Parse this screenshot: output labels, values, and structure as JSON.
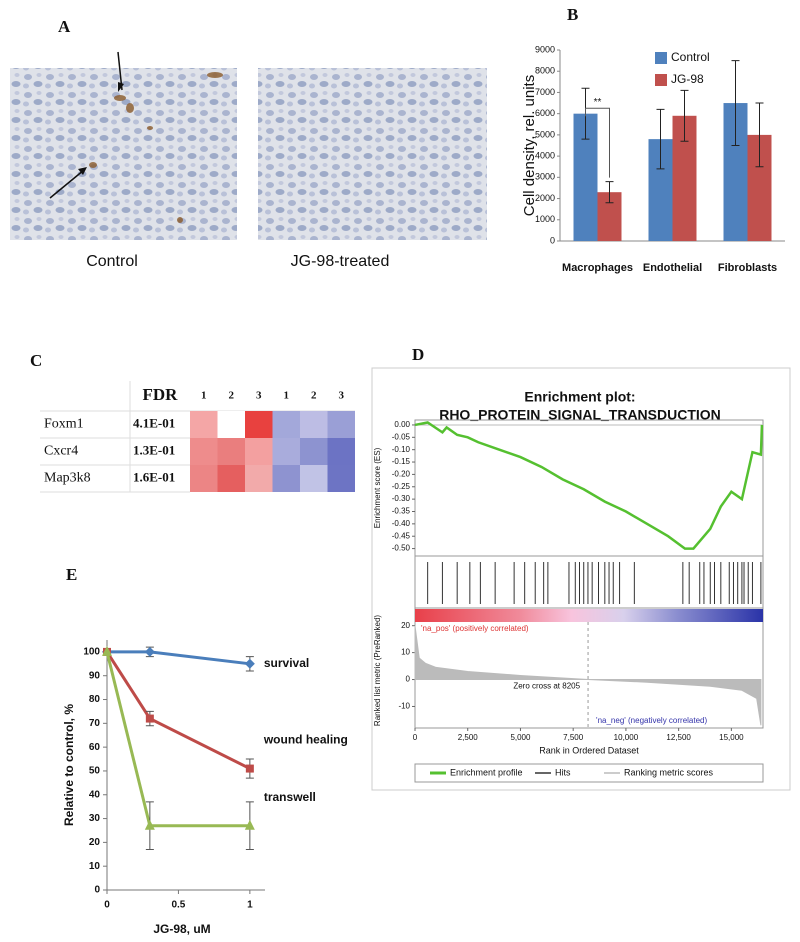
{
  "panel_labels": [
    "A",
    "B",
    "C",
    "D",
    "E"
  ],
  "images": {
    "labels": [
      "Control",
      "JG-98-treated"
    ]
  },
  "heatmap": {
    "header": [
      "FDR",
      "1",
      "2",
      "3",
      "1",
      "2",
      "3"
    ],
    "rows": [
      {
        "gene": "Foxm1",
        "fdr": "4.1E-01",
        "colors": [
          "#f4a6a6",
          "#ffffff",
          "#e8413f",
          "#a3a8da",
          "#bdbde4",
          "#9a9fd6"
        ]
      },
      {
        "gene": "Cxcr4",
        "fdr": "1.3E-01",
        "colors": [
          "#ee8c8c",
          "#ea7e7e",
          "#f3a0a0",
          "#a9acdc",
          "#8d93d0",
          "#6c73c4"
        ]
      },
      {
        "gene": "Map3k8",
        "fdr": "1.6E-01",
        "colors": [
          "#ec8585",
          "#e55f5f",
          "#f2aaaa",
          "#8e93d0",
          "#c1c3e6",
          "#6d74c4"
        ]
      }
    ]
  },
  "chart_data": [
    {
      "type": "bar",
      "ylabel": "Cell density, rel. units",
      "categories": [
        "Macrophages",
        "Endothelial",
        "Fibroblasts"
      ],
      "series": [
        {
          "name": "Control",
          "color": "#4f81bd",
          "values": [
            6000,
            4800,
            6500
          ],
          "errors": [
            1200,
            1400,
            2000
          ]
        },
        {
          "name": "JG-98",
          "color": "#c0504d",
          "values": [
            2300,
            5900,
            5000
          ],
          "errors": [
            500,
            1200,
            1500
          ]
        }
      ],
      "ylim": [
        0,
        9000
      ],
      "yticks": [
        0,
        1000,
        2000,
        3000,
        4000,
        5000,
        6000,
        7000,
        8000,
        9000
      ],
      "legend": "upper right",
      "annotation": "**"
    },
    {
      "type": "gsea",
      "title": [
        "Enrichment plot:",
        "RHO_PROTEIN_SIGNAL_TRANSDUCTION"
      ],
      "xlabel": "Rank in Ordered Dataset",
      "xlim": [
        0,
        16500
      ],
      "xticks": [
        0,
        {
          "value": 2500,
          "label": "2,500"
        },
        {
          "value": 5000,
          "label": "5,000"
        },
        {
          "value": 7500,
          "label": "7,500"
        },
        {
          "value": 10000,
          "label": "10,000"
        },
        {
          "value": 12500,
          "label": "12,500"
        },
        {
          "value": 15000,
          "label": "15,000"
        }
      ],
      "es": {
        "name": "Enrichment profile",
        "color": "#55c030",
        "ylabel": "Enrichment score (ES)",
        "ylim": [
          -0.53,
          0.02
        ],
        "yticks": [
          {
            "value": 0,
            "label": "0.00"
          },
          -0.05,
          {
            "value": -0.1,
            "label": "-0.10"
          },
          -0.15,
          {
            "value": -0.2,
            "label": "-0.20"
          },
          -0.25,
          {
            "value": -0.3,
            "label": "-0.30"
          },
          -0.35,
          {
            "value": -0.4,
            "label": "-0.40"
          },
          -0.45,
          {
            "value": -0.5,
            "label": "-0.50"
          }
        ],
        "x": [
          0,
          600,
          1300,
          1500,
          2000,
          2500,
          3000,
          4000,
          5000,
          6000,
          7000,
          8000,
          9000,
          10000,
          11000,
          12000,
          12800,
          13200,
          13500,
          14000,
          14500,
          15000,
          15500,
          16000,
          16400,
          16450
        ],
        "values": [
          0,
          0.01,
          -0.03,
          -0.01,
          -0.04,
          -0.05,
          -0.07,
          -0.1,
          -0.13,
          -0.17,
          -0.22,
          -0.26,
          -0.31,
          -0.35,
          -0.4,
          -0.45,
          -0.5,
          -0.5,
          -0.47,
          -0.42,
          -0.33,
          -0.27,
          -0.3,
          -0.11,
          -0.12,
          0
        ]
      },
      "hits": {
        "name": "Hits",
        "color": "#333333",
        "x": [
          600,
          1300,
          2000,
          2600,
          3100,
          3800,
          4700,
          5200,
          5700,
          6100,
          6300,
          7300,
          7600,
          7800,
          8000,
          8200,
          8400,
          8700,
          9000,
          9200,
          9400,
          9700,
          10400,
          12700,
          13000,
          13500,
          13700,
          14000,
          14200,
          14500,
          14900,
          15100,
          15300,
          15500,
          15600,
          15800,
          16000,
          16400
        ]
      },
      "metric": {
        "name": "Ranking metric scores",
        "color": "#bbbbbb",
        "ylabel": "Ranked list metric (PreRanked)",
        "ylim": [
          -18,
          21
        ],
        "yticks": [
          -10,
          0,
          10,
          20
        ],
        "x": [
          0,
          200,
          500,
          1000,
          2500,
          5000,
          8205,
          11000,
          14000,
          15500,
          16200,
          16400
        ],
        "values": [
          20,
          8,
          6,
          4.5,
          3,
          1.5,
          0,
          -1,
          -2.5,
          -4,
          -7,
          -17
        ]
      },
      "zero_cross": 8205,
      "annotations": [
        "'na_pos' (positively correlated)",
        "Zero cross at 8205",
        "'na_neg' (negatively correlated)"
      ]
    },
    {
      "type": "line",
      "xlabel": "JG-98, uM",
      "ylabel": "Relative to control, %",
      "x": [
        0,
        0.3,
        1
      ],
      "xlim": [
        0,
        1.05
      ],
      "xticks": [
        0,
        0.5,
        1
      ],
      "ylim": [
        0,
        105
      ],
      "yticks": [
        0,
        10,
        20,
        30,
        40,
        50,
        60,
        70,
        80,
        90,
        100
      ],
      "series": [
        {
          "name": "survival",
          "color": "#4a7ebb",
          "marker": "diamond",
          "values": [
            100,
            100,
            95
          ],
          "errors": [
            0,
            2,
            3
          ]
        },
        {
          "name": "wound healing",
          "color": "#be4b48",
          "marker": "square",
          "values": [
            100,
            72,
            51
          ],
          "errors": [
            0,
            3,
            4
          ]
        },
        {
          "name": "transwell",
          "color": "#98b954",
          "marker": "triangle",
          "values": [
            100,
            27,
            27
          ],
          "errors": [
            0,
            10,
            10
          ]
        }
      ]
    }
  ]
}
